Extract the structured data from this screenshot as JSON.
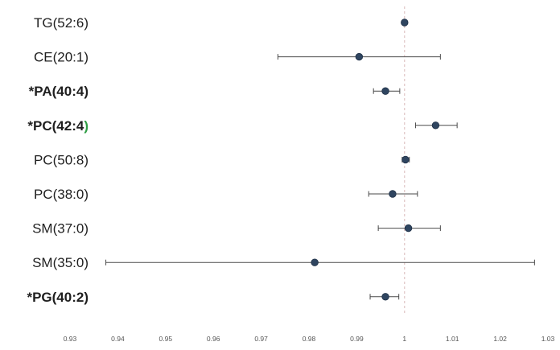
{
  "chart_data": {
    "type": "forest",
    "title": "",
    "xlabel": "",
    "ylabel": "",
    "xlim": [
      0.93,
      1.03
    ],
    "x_ticks": [
      0.93,
      0.94,
      0.95,
      0.96,
      0.97,
      0.98,
      0.99,
      1,
      1.01,
      1.02,
      1.03
    ],
    "x_tick_labels": [
      "0.93",
      "0.94",
      "0.95",
      "0.96",
      "0.97",
      "0.98",
      "0.99",
      "1",
      "1.01",
      "1.02",
      "1.03"
    ],
    "reference_line": 1,
    "grid": false,
    "legend": "none",
    "point_color": "#2f4560",
    "line_color": "#4a4a4a",
    "rows": [
      {
        "label": "TG(52:6)",
        "bold": false,
        "estimate": 1.0,
        "low": 1.0,
        "high": 1.0
      },
      {
        "label": "CE(20:1)",
        "bold": false,
        "estimate": 0.9905,
        "low": 0.9735,
        "high": 1.0075
      },
      {
        "label": "*PA(40:4)",
        "bold": true,
        "estimate": 0.996,
        "low": 0.9935,
        "high": 0.999
      },
      {
        "label": "*PC(42:4",
        "label_suffix": ")",
        "suffix_color": "#2e9e44",
        "bold": true,
        "estimate": 1.0065,
        "low": 1.0023,
        "high": 1.011
      },
      {
        "label": "PC(50:8)",
        "bold": false,
        "estimate": 1.0002,
        "low": 0.9995,
        "high": 1.001
      },
      {
        "label": "PC(38:0)",
        "bold": false,
        "estimate": 0.9975,
        "low": 0.9925,
        "high": 1.0027
      },
      {
        "label": "SM(37:0)",
        "bold": false,
        "estimate": 1.0008,
        "low": 0.9945,
        "high": 1.0075
      },
      {
        "label": "SM(35:0)",
        "bold": false,
        "estimate": 0.9812,
        "low": 0.9375,
        "high": 1.0272
      },
      {
        "label": "*PG(40:2)",
        "bold": true,
        "estimate": 0.996,
        "low": 0.9928,
        "high": 0.9988
      }
    ]
  }
}
